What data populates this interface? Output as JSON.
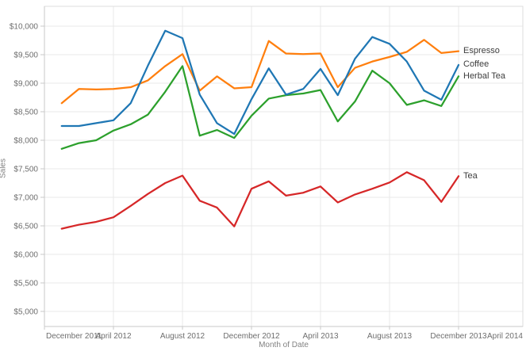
{
  "chart_data": {
    "type": "line",
    "title": "",
    "xlabel": "Month of Date",
    "ylabel": "Sales",
    "grid": true,
    "legend_position": "line-end-labels",
    "ylim": [
      5000,
      10000
    ],
    "y_tick_step": 500,
    "x_axis_start": "December 2011",
    "x_axis_end": "April 2014",
    "y_ticks": [
      {
        "label": "$5,000",
        "value": 5000
      },
      {
        "label": "$5,500",
        "value": 5500
      },
      {
        "label": "$6,000",
        "value": 6000
      },
      {
        "label": "$6,500",
        "value": 6500
      },
      {
        "label": "$7,000",
        "value": 7000
      },
      {
        "label": "$7,500",
        "value": 7500
      },
      {
        "label": "$8,000",
        "value": 8000
      },
      {
        "label": "$8,500",
        "value": 8500
      },
      {
        "label": "$9,000",
        "value": 9000
      },
      {
        "label": "$9,500",
        "value": 9500
      },
      {
        "label": "$10,000",
        "value": 10000
      }
    ],
    "x_ticks": [
      {
        "label": "December 2011",
        "month_offset": 0
      },
      {
        "label": "April 2012",
        "month_offset": 4
      },
      {
        "label": "August 2012",
        "month_offset": 8
      },
      {
        "label": "December 2012",
        "month_offset": 12
      },
      {
        "label": "April 2013",
        "month_offset": 16
      },
      {
        "label": "August 2013",
        "month_offset": 20
      },
      {
        "label": "December 2013",
        "month_offset": 24
      },
      {
        "label": "April 2014",
        "month_offset": 28
      }
    ],
    "months": [
      "Jan 2012",
      "Feb 2012",
      "Mar 2012",
      "Apr 2012",
      "May 2012",
      "Jun 2012",
      "Jul 2012",
      "Aug 2012",
      "Sep 2012",
      "Oct 2012",
      "Nov 2012",
      "Dec 2012",
      "Jan 2013",
      "Feb 2013",
      "Mar 2013",
      "Apr 2013",
      "May 2013",
      "Jun 2013",
      "Jul 2013",
      "Aug 2013",
      "Sep 2013",
      "Oct 2013",
      "Nov 2013",
      "Dec 2013"
    ],
    "series": [
      {
        "name": "Espresso",
        "color": "#ff7f0e",
        "values": [
          8650,
          8900,
          8890,
          8900,
          8930,
          9050,
          9300,
          9510,
          8870,
          9120,
          8910,
          8930,
          9740,
          9520,
          9510,
          9520,
          8930,
          9270,
          9380,
          9460,
          9550,
          9760,
          9530,
          9560
        ]
      },
      {
        "name": "Coffee",
        "color": "#1f77b4",
        "values": [
          8250,
          8250,
          8300,
          8350,
          8650,
          9310,
          9920,
          9790,
          8800,
          8300,
          8110,
          8720,
          9260,
          8800,
          8900,
          9250,
          8790,
          9430,
          9810,
          9690,
          9380,
          8870,
          8710,
          9320
        ]
      },
      {
        "name": "Herbal Tea",
        "color": "#2ca02c",
        "values": [
          7850,
          7950,
          8000,
          8170,
          8280,
          8450,
          8850,
          9300,
          8080,
          8180,
          8040,
          8430,
          8730,
          8790,
          8820,
          8880,
          8330,
          8680,
          9220,
          9000,
          8620,
          8700,
          8600,
          9120
        ]
      },
      {
        "name": "Tea",
        "color": "#d62728",
        "values": [
          6450,
          6520,
          6570,
          6650,
          6850,
          7060,
          7250,
          7380,
          6940,
          6820,
          6490,
          7150,
          7280,
          7030,
          7080,
          7190,
          6910,
          7050,
          7150,
          7260,
          7440,
          7300,
          6920,
          7370
        ]
      }
    ]
  },
  "style": {
    "gridline_color": "#e8e8e8",
    "pane_border_color": "#dedede",
    "axis_line_color": "#c9c9c9",
    "tick_mark_color": "#c9c9c9"
  }
}
